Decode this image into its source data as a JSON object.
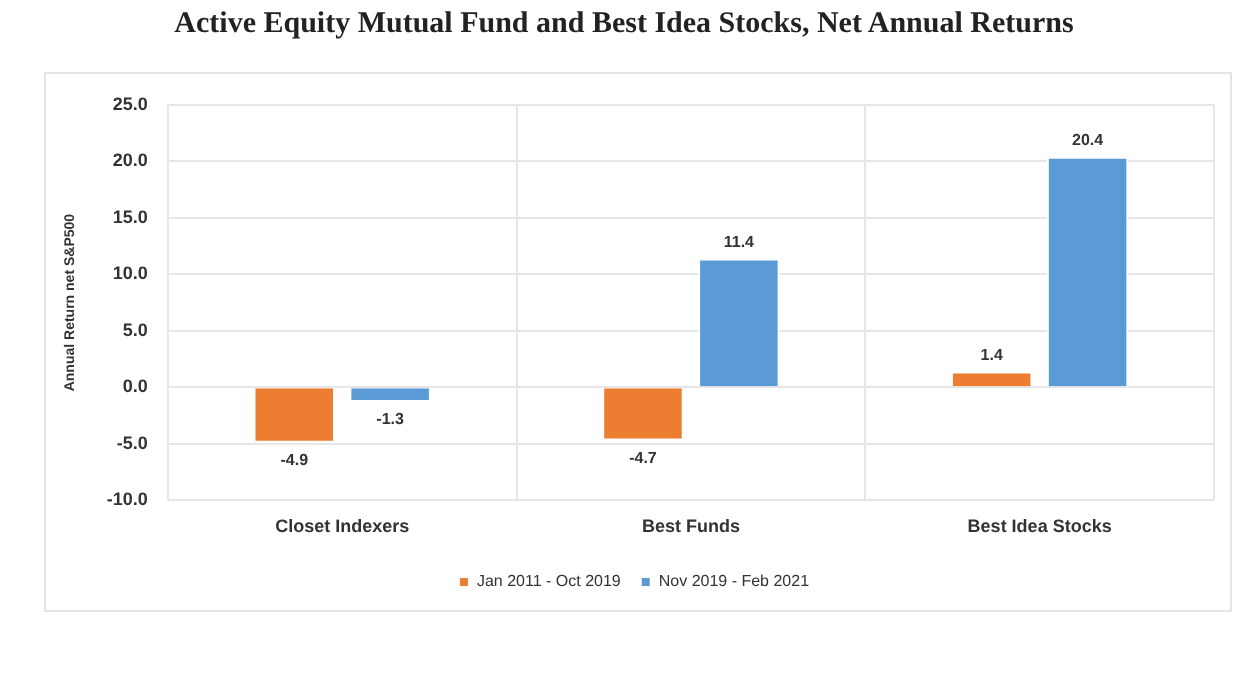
{
  "chart_data": {
    "type": "bar",
    "title": "Active Equity Mutual Fund and Best Idea Stocks, Net Annual Returns",
    "ylabel": "Annual Return net S&P500",
    "categories": [
      "Closet Indexers",
      "Best Funds",
      "Best Idea Stocks"
    ],
    "series": [
      {
        "name": "Jan 2011 - Oct 2019",
        "color": "#ed7d31",
        "values": [
          -4.9,
          -4.7,
          1.4
        ]
      },
      {
        "name": "Nov 2019 - Feb 2021",
        "color": "#5b9bd5",
        "values": [
          -1.3,
          11.4,
          20.4
        ]
      }
    ],
    "ylim": [
      -10,
      25
    ],
    "yticks": [
      {
        "value": -10,
        "label": "-10.0"
      },
      {
        "value": -5,
        "label": "-5.0"
      },
      {
        "value": 0,
        "label": "0.0"
      },
      {
        "value": 5,
        "label": "5.0"
      },
      {
        "value": 10,
        "label": "10.0"
      },
      {
        "value": 15,
        "label": "15.0"
      },
      {
        "value": 20,
        "label": "20.0"
      },
      {
        "value": 25,
        "label": "25.0"
      }
    ],
    "grid": true,
    "legend": "bottom",
    "data_labels": true
  }
}
